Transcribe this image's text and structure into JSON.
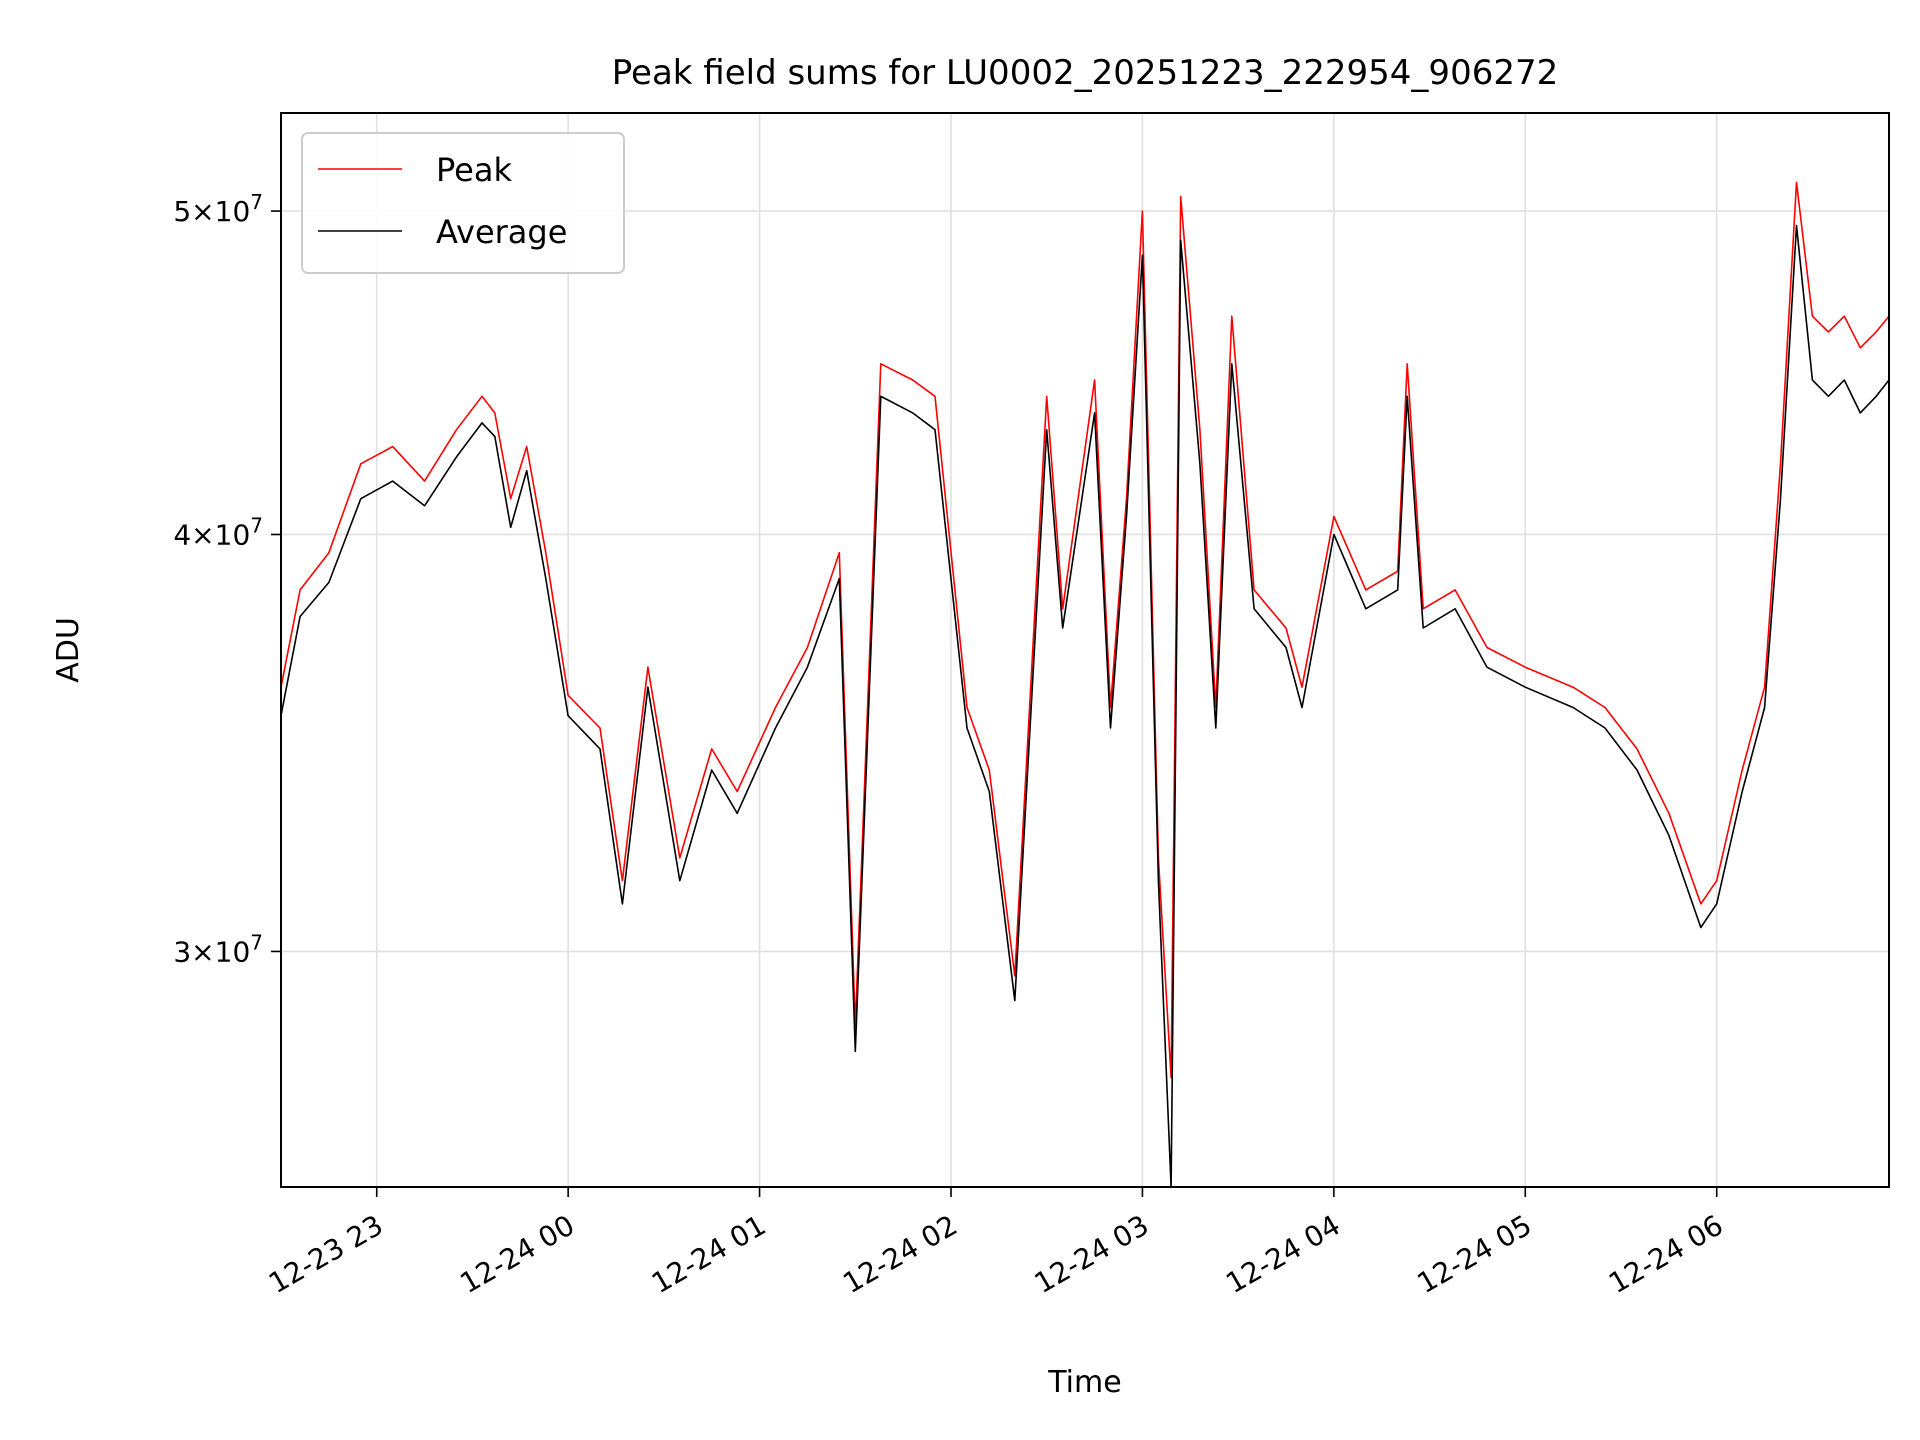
{
  "chart_data": {
    "type": "line",
    "title": "Peak field sums for LU0002_20251223_222954_906272",
    "xlabel": "Time",
    "ylabel": "ADU",
    "yscale": "log",
    "grid": true,
    "legend_position": "upper-left",
    "xlim": [
      "2025-12-23 22:30",
      "2025-12-24 06:54"
    ],
    "ylim": [
      25500000,
      53500000
    ],
    "x_ticks": [
      {
        "value": "2025-12-23 23:00",
        "label": "12-23 23"
      },
      {
        "value": "2025-12-24 00:00",
        "label": "12-24 00"
      },
      {
        "value": "2025-12-24 01:00",
        "label": "12-24 01"
      },
      {
        "value": "2025-12-24 02:00",
        "label": "12-24 02"
      },
      {
        "value": "2025-12-24 03:00",
        "label": "12-24 03"
      },
      {
        "value": "2025-12-24 04:00",
        "label": "12-24 04"
      },
      {
        "value": "2025-12-24 05:00",
        "label": "12-24 05"
      },
      {
        "value": "2025-12-24 06:00",
        "label": "12-24 06"
      }
    ],
    "y_ticks": [
      {
        "value": 30000000,
        "mantissa": "3",
        "exponent": "7"
      },
      {
        "value": 40000000,
        "mantissa": "4",
        "exponent": "7"
      },
      {
        "value": 50000000,
        "mantissa": "5",
        "exponent": "7"
      }
    ],
    "series": [
      {
        "name": "Peak",
        "color": "#ff0000",
        "x": [
          "2025-12-23 22:30",
          "2025-12-23 22:36",
          "2025-12-23 22:45",
          "2025-12-23 22:55",
          "2025-12-23 23:05",
          "2025-12-23 23:15",
          "2025-12-23 23:25",
          "2025-12-23 23:33",
          "2025-12-23 23:37",
          "2025-12-23 23:42",
          "2025-12-23 23:47",
          "2025-12-23 23:53",
          "2025-12-24 00:00",
          "2025-12-24 00:10",
          "2025-12-24 00:17",
          "2025-12-24 00:25",
          "2025-12-24 00:35",
          "2025-12-24 00:45",
          "2025-12-24 00:53",
          "2025-12-24 01:05",
          "2025-12-24 01:15",
          "2025-12-24 01:25",
          "2025-12-24 01:30",
          "2025-12-24 01:38",
          "2025-12-24 01:48",
          "2025-12-24 01:55",
          "2025-12-24 02:05",
          "2025-12-24 02:12",
          "2025-12-24 02:20",
          "2025-12-24 02:30",
          "2025-12-24 02:35",
          "2025-12-24 02:45",
          "2025-12-24 02:50",
          "2025-12-24 02:55",
          "2025-12-24 03:00",
          "2025-12-24 03:05",
          "2025-12-24 03:09",
          "2025-12-24 03:12",
          "2025-12-24 03:18",
          "2025-12-24 03:23",
          "2025-12-24 03:28",
          "2025-12-24 03:35",
          "2025-12-24 03:45",
          "2025-12-24 03:50",
          "2025-12-24 04:00",
          "2025-12-24 04:10",
          "2025-12-24 04:20",
          "2025-12-24 04:23",
          "2025-12-24 04:28",
          "2025-12-24 04:38",
          "2025-12-24 04:48",
          "2025-12-24 05:00",
          "2025-12-24 05:15",
          "2025-12-24 05:25",
          "2025-12-24 05:35",
          "2025-12-24 05:45",
          "2025-12-24 05:55",
          "2025-12-24 06:00",
          "2025-12-24 06:08",
          "2025-12-24 06:15",
          "2025-12-24 06:20",
          "2025-12-24 06:25",
          "2025-12-24 06:30",
          "2025-12-24 06:35",
          "2025-12-24 06:40",
          "2025-12-24 06:45",
          "2025-12-24 06:50",
          "2025-12-24 06:54"
        ],
        "values": [
          36000000,
          38500000,
          39500000,
          42000000,
          42500000,
          41500000,
          43000000,
          44000000,
          43500000,
          41000000,
          42500000,
          39500000,
          35800000,
          35000000,
          31500000,
          36500000,
          32000000,
          34500000,
          33500000,
          35500000,
          37000000,
          39500000,
          28500000,
          45000000,
          44500000,
          44000000,
          35500000,
          34000000,
          29500000,
          44000000,
          38000000,
          44500000,
          35500000,
          41000000,
          50000000,
          32000000,
          27500000,
          50500000,
          43000000,
          35500000,
          46500000,
          38500000,
          37500000,
          36000000,
          40500000,
          38500000,
          39000000,
          45000000,
          38000000,
          38500000,
          37000000,
          36500000,
          36000000,
          35500000,
          34500000,
          33000000,
          31000000,
          31500000,
          34000000,
          36000000,
          42000000,
          51000000,
          46500000,
          46000000,
          46500000,
          45500000,
          46000000,
          46500000
        ]
      },
      {
        "name": "Average",
        "color": "#000000",
        "x": [
          "2025-12-23 22:30",
          "2025-12-23 22:36",
          "2025-12-23 22:45",
          "2025-12-23 22:55",
          "2025-12-23 23:05",
          "2025-12-23 23:15",
          "2025-12-23 23:25",
          "2025-12-23 23:33",
          "2025-12-23 23:37",
          "2025-12-23 23:42",
          "2025-12-23 23:47",
          "2025-12-23 23:53",
          "2025-12-24 00:00",
          "2025-12-24 00:10",
          "2025-12-24 00:17",
          "2025-12-24 00:25",
          "2025-12-24 00:35",
          "2025-12-24 00:45",
          "2025-12-24 00:53",
          "2025-12-24 01:05",
          "2025-12-24 01:15",
          "2025-12-24 01:25",
          "2025-12-24 01:30",
          "2025-12-24 01:38",
          "2025-12-24 01:48",
          "2025-12-24 01:55",
          "2025-12-24 02:05",
          "2025-12-24 02:12",
          "2025-12-24 02:20",
          "2025-12-24 02:30",
          "2025-12-24 02:35",
          "2025-12-24 02:45",
          "2025-12-24 02:50",
          "2025-12-24 02:55",
          "2025-12-24 03:00",
          "2025-12-24 03:05",
          "2025-12-24 03:09",
          "2025-12-24 03:12",
          "2025-12-24 03:18",
          "2025-12-24 03:23",
          "2025-12-24 03:28",
          "2025-12-24 03:35",
          "2025-12-24 03:45",
          "2025-12-24 03:50",
          "2025-12-24 04:00",
          "2025-12-24 04:10",
          "2025-12-24 04:20",
          "2025-12-24 04:23",
          "2025-12-24 04:28",
          "2025-12-24 04:38",
          "2025-12-24 04:48",
          "2025-12-24 05:00",
          "2025-12-24 05:15",
          "2025-12-24 05:25",
          "2025-12-24 05:35",
          "2025-12-24 05:45",
          "2025-12-24 05:55",
          "2025-12-24 06:00",
          "2025-12-24 06:08",
          "2025-12-24 06:15",
          "2025-12-24 06:20",
          "2025-12-24 06:25",
          "2025-12-24 06:30",
          "2025-12-24 06:35",
          "2025-12-24 06:40",
          "2025-12-24 06:45",
          "2025-12-24 06:50",
          "2025-12-24 06:54"
        ],
        "values": [
          35300000,
          37800000,
          38700000,
          41000000,
          41500000,
          40800000,
          42200000,
          43200000,
          42800000,
          40200000,
          41800000,
          38800000,
          35300000,
          34500000,
          31000000,
          36000000,
          31500000,
          34000000,
          33000000,
          35000000,
          36500000,
          38800000,
          28000000,
          44000000,
          43500000,
          43000000,
          35000000,
          33500000,
          29000000,
          43000000,
          37500000,
          43500000,
          35000000,
          40500000,
          48500000,
          31500000,
          25500000,
          49000000,
          42000000,
          35000000,
          45000000,
          38000000,
          37000000,
          35500000,
          40000000,
          38000000,
          38500000,
          44000000,
          37500000,
          38000000,
          36500000,
          36000000,
          35500000,
          35000000,
          34000000,
          32500000,
          30500000,
          31000000,
          33500000,
          35500000,
          41000000,
          49500000,
          44500000,
          44000000,
          44500000,
          43500000,
          44000000,
          44500000
        ]
      }
    ]
  }
}
